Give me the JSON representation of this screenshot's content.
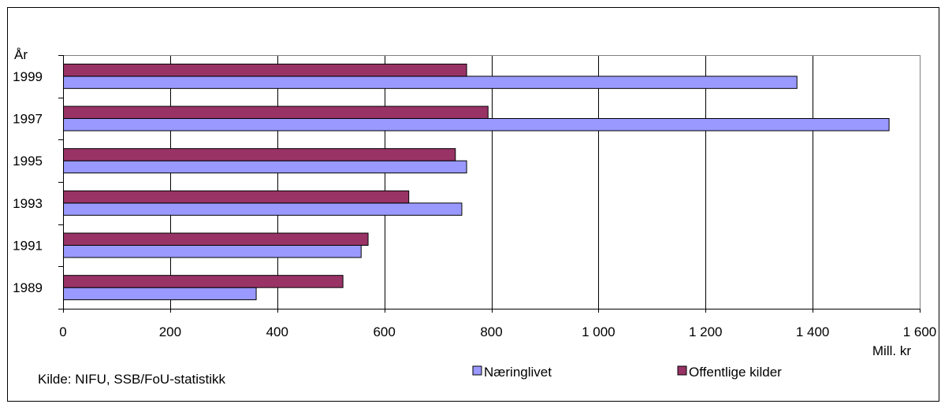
{
  "chart_data": {
    "type": "bar",
    "orientation": "horizontal",
    "categories": [
      "1989",
      "1991",
      "1993",
      "1995",
      "1997",
      "1999"
    ],
    "series": [
      {
        "name": "Næringlivet",
        "color": "#9999ff",
        "values": [
          360,
          556,
          744,
          753,
          1542,
          1370
        ]
      },
      {
        "name": "Offentlige kilder",
        "color": "#993366",
        "values": [
          522,
          569,
          645,
          732,
          793,
          753
        ]
      }
    ],
    "xlim": [
      0,
      1600
    ],
    "xticks": [
      "0",
      "200",
      "400",
      "600",
      "800",
      "1 000",
      "1 200",
      "1 400",
      "1 600"
    ],
    "xlabel": "Mill. kr",
    "ylabel": "År",
    "grid": true,
    "legend_position": "bottom",
    "source": "Kilde: NIFU, SSB/FoU-statistikk"
  }
}
